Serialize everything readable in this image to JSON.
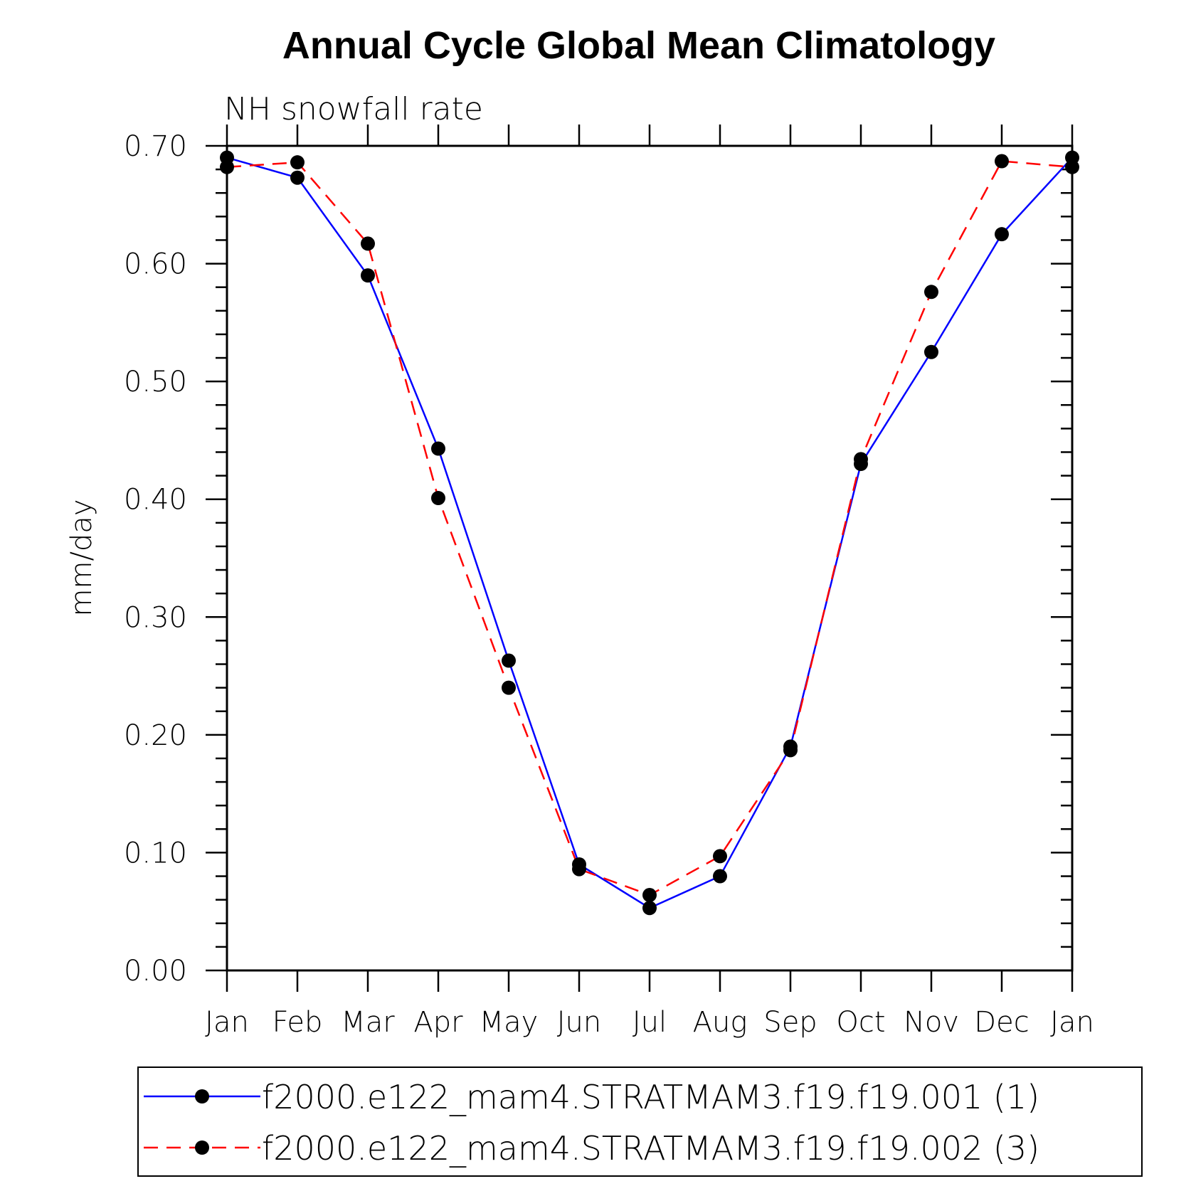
{
  "chart_data": {
    "type": "line",
    "title": "Annual Cycle Global Mean Climatology",
    "subtitle": "NH snowfall rate",
    "ylabel": "mm/day",
    "xlabel": "",
    "categories": [
      "Jan",
      "Feb",
      "Mar",
      "Apr",
      "May",
      "Jun",
      "Jul",
      "Aug",
      "Sep",
      "Oct",
      "Nov",
      "Dec",
      "Jan"
    ],
    "ylim": [
      0,
      0.7
    ],
    "yticks": [
      "0.00",
      "0.10",
      "0.20",
      "0.30",
      "0.40",
      "0.50",
      "0.60",
      "0.70"
    ],
    "grid": false,
    "legend_position": "bottom",
    "series": [
      {
        "name": "f2000.e122_mam4.STRATMAM3.f19.f19.001 (1)",
        "color": "#0000ff",
        "dash": "solid",
        "values": [
          0.69,
          0.673,
          0.59,
          0.443,
          0.263,
          0.09,
          0.053,
          0.08,
          0.19,
          0.43,
          0.525,
          0.625,
          0.69
        ]
      },
      {
        "name": "f2000.e122_mam4.STRATMAM3.f19.f19.002 (3)",
        "color": "#ff0000",
        "dash": "dashed",
        "values": [
          0.682,
          0.686,
          0.617,
          0.401,
          0.24,
          0.086,
          0.064,
          0.097,
          0.187,
          0.434,
          0.576,
          0.687,
          0.682
        ]
      }
    ]
  }
}
